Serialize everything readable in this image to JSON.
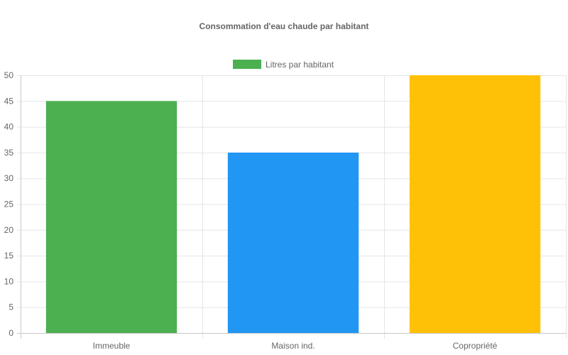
{
  "chart_data": {
    "type": "bar",
    "title": "Consommation d'eau chaude par habitant",
    "categories": [
      "Immeuble",
      "Maison ind.",
      "Copropriété"
    ],
    "series": [
      {
        "name": "Litres par habitant",
        "values": [
          45,
          35,
          50
        ]
      }
    ],
    "bar_colors": [
      "#4caf50",
      "#2196f3",
      "#ffc107"
    ],
    "legend_color": "#4caf50",
    "ylim": [
      0,
      50
    ],
    "y_ticks": [
      0,
      5,
      10,
      15,
      20,
      25,
      30,
      35,
      40,
      45,
      50
    ],
    "grid": true,
    "legend_position": "top"
  }
}
